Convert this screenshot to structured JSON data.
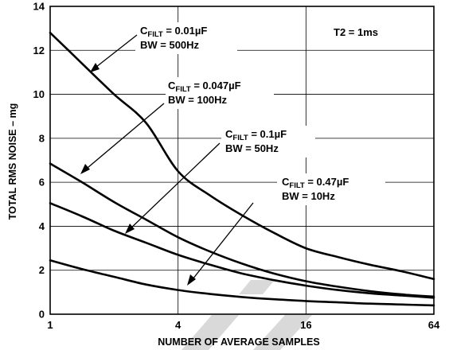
{
  "chart_data": {
    "type": "line",
    "xlabel": "NUMBER OF AVERAGE SAMPLES",
    "ylabel": "TOTAL RMS NOISE – mg",
    "x_scale": "log2",
    "xlim": [
      1,
      64
    ],
    "ylim": [
      0,
      14
    ],
    "x_ticks": [
      "1",
      "4",
      "16",
      "64"
    ],
    "y_ticks": [
      "0",
      "2",
      "4",
      "6",
      "8",
      "10",
      "12",
      "14"
    ],
    "grid": true,
    "condition_label": "T2 = 1ms",
    "series": [
      {
        "name": "CFILT = 0.01µF, BW = 500Hz",
        "cap_main": "C",
        "cap_sub": "FILT",
        "cap_value": " = 0.01µF",
        "bw": "BW = 500Hz",
        "x": [
          1,
          1.414,
          2,
          2.828,
          4,
          5.657,
          8,
          11.31,
          16,
          22.63,
          32,
          45.25,
          64
        ],
        "y": [
          12.8,
          11.4,
          10.0,
          8.7,
          6.5,
          5.4,
          4.5,
          3.7,
          3.0,
          2.6,
          2.25,
          1.95,
          1.6
        ]
      },
      {
        "name": "CFILT = 0.047µF, BW = 100Hz",
        "cap_main": "C",
        "cap_sub": "FILT",
        "cap_value": " = 0.047µF",
        "bw": "BW = 100Hz",
        "x": [
          1,
          1.414,
          2,
          2.828,
          4,
          5.657,
          8,
          11.31,
          16,
          22.63,
          32,
          45.25,
          64
        ],
        "y": [
          6.85,
          6.0,
          5.1,
          4.3,
          3.5,
          2.85,
          2.3,
          1.85,
          1.5,
          1.25,
          1.05,
          0.9,
          0.8
        ]
      },
      {
        "name": "CFILT = 0.1µF, BW = 50Hz",
        "cap_main": "C",
        "cap_sub": "FILT",
        "cap_value": " = 0.1µF",
        "bw": "BW = 50Hz",
        "x": [
          1,
          1.414,
          2,
          2.828,
          4,
          5.657,
          8,
          11.31,
          16,
          22.63,
          32,
          45.25,
          64
        ],
        "y": [
          5.05,
          4.45,
          3.8,
          3.25,
          2.7,
          2.25,
          1.85,
          1.55,
          1.3,
          1.1,
          0.95,
          0.85,
          0.75
        ]
      },
      {
        "name": "CFILT = 0.47µF, BW = 10Hz",
        "cap_main": "C",
        "cap_sub": "FILT",
        "cap_value": " = 0.47µF",
        "bw": "BW = 10Hz",
        "x": [
          1,
          1.414,
          2,
          2.828,
          4,
          5.657,
          8,
          11.31,
          16,
          22.63,
          32,
          45.25,
          64
        ],
        "y": [
          2.45,
          2.05,
          1.7,
          1.35,
          1.1,
          0.92,
          0.78,
          0.68,
          0.6,
          0.54,
          0.48,
          0.44,
          0.4
        ]
      }
    ]
  }
}
